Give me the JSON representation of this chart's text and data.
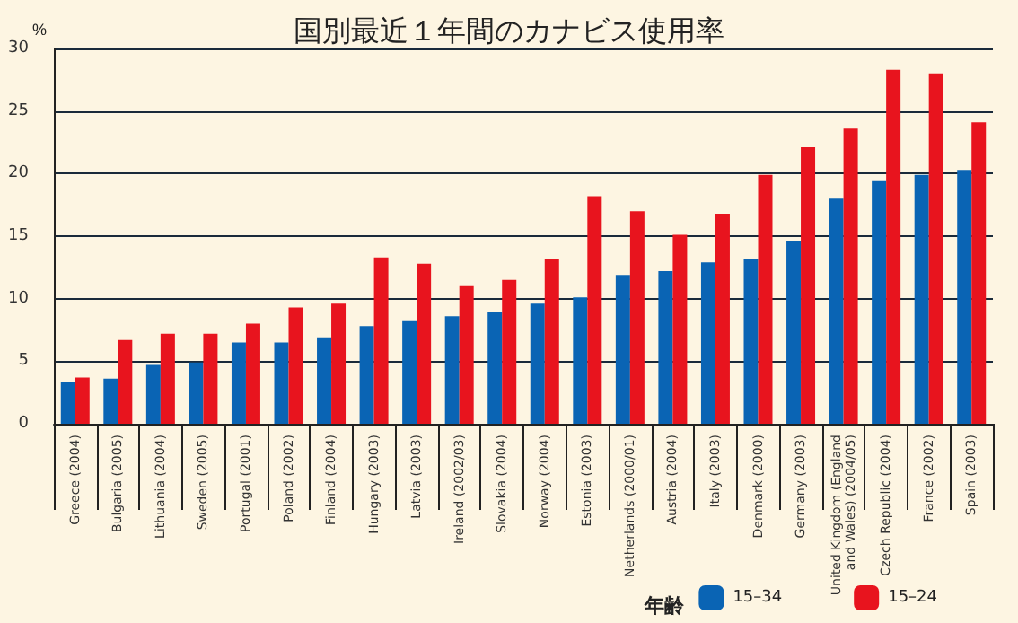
{
  "chart_data": {
    "type": "bar",
    "title": "国別最近１年間のカナビス使用率",
    "ylabel": "%",
    "legend_title": "年齢",
    "categories": [
      "Greece (2004)",
      "Bulgaria (2005)",
      "Lithuania (2004)",
      "Sweden (2005)",
      "Portugal (2001)",
      "Poland (2002)",
      "Finland (2004)",
      "Hungary (2003)",
      "Latvia (2003)",
      "Ireland (2002/03)",
      "Slovakia (2004)",
      "Norway (2004)",
      "Estonia (2003)",
      "Netherlands (2000/01)",
      "Austria (2004)",
      "Italy (2003)",
      "Denmark (2000)",
      "Germany (2003)",
      "United Kingdom (England\nand Wales) (2004/05)",
      "Czech Republic (2004)",
      "France (2002)",
      "Spain (2003)"
    ],
    "series": [
      {
        "name": "15–34",
        "color": "#0a64b4",
        "values": [
          3.3,
          3.6,
          4.7,
          4.9,
          6.5,
          6.5,
          6.9,
          7.8,
          8.2,
          8.6,
          8.9,
          9.6,
          10.1,
          11.9,
          12.2,
          12.9,
          13.2,
          14.6,
          18.0,
          19.4,
          19.9,
          20.3
        ]
      },
      {
        "name": "15–24",
        "color": "#e8141e",
        "values": [
          3.7,
          6.7,
          7.2,
          7.2,
          8.0,
          9.3,
          9.6,
          13.3,
          12.8,
          11.0,
          11.5,
          13.2,
          18.2,
          17.0,
          15.1,
          16.8,
          19.9,
          22.1,
          23.6,
          28.3,
          28.0,
          24.1
        ]
      }
    ],
    "ylim": [
      0,
      30
    ],
    "yticks": [
      0,
      5,
      10,
      15,
      20,
      25,
      30
    ],
    "grid": "y",
    "legend": "bottom right"
  }
}
